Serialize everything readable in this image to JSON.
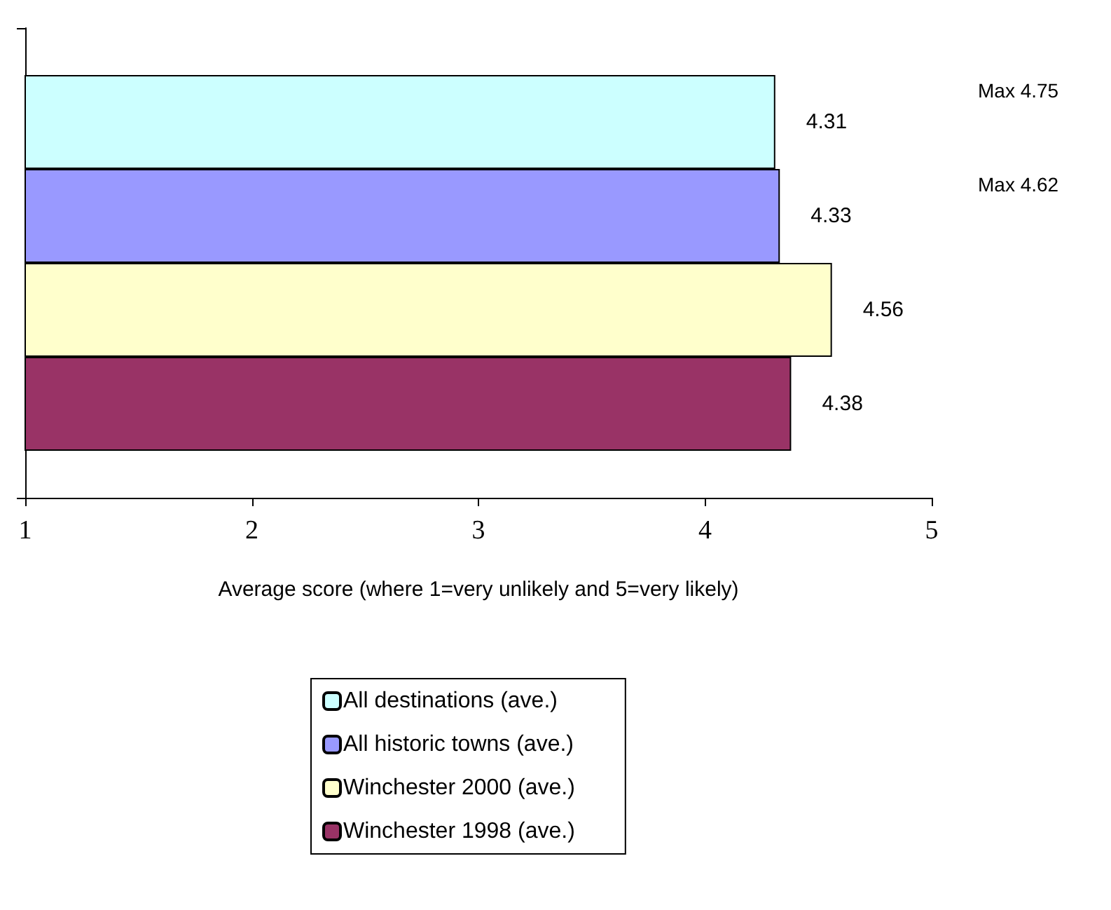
{
  "chart_data": {
    "type": "bar",
    "orientation": "horizontal",
    "xlabel": "Average score (where 1=very unlikely and 5=very likely)",
    "categories": [
      null
    ],
    "series": [
      {
        "name": "All destinations (ave.)",
        "color": "#ccffff",
        "values": [
          4.31
        ]
      },
      {
        "name": "All historic towns (ave.)",
        "color": "#9999ff",
        "values": [
          4.33
        ]
      },
      {
        "name": "Winchester 2000 (ave.)",
        "color": "#ffffcc",
        "values": [
          4.56
        ]
      },
      {
        "name": "Winchester 1998 (ave.)",
        "color": "#993366",
        "values": [
          4.38
        ]
      }
    ],
    "xlim": [
      1,
      5
    ],
    "xticks": [
      1,
      2,
      3,
      4,
      5
    ],
    "grid": false,
    "legend": "bottom",
    "data_labels": true,
    "annotations": [
      "Max 4.75",
      "Max 4.62"
    ]
  }
}
